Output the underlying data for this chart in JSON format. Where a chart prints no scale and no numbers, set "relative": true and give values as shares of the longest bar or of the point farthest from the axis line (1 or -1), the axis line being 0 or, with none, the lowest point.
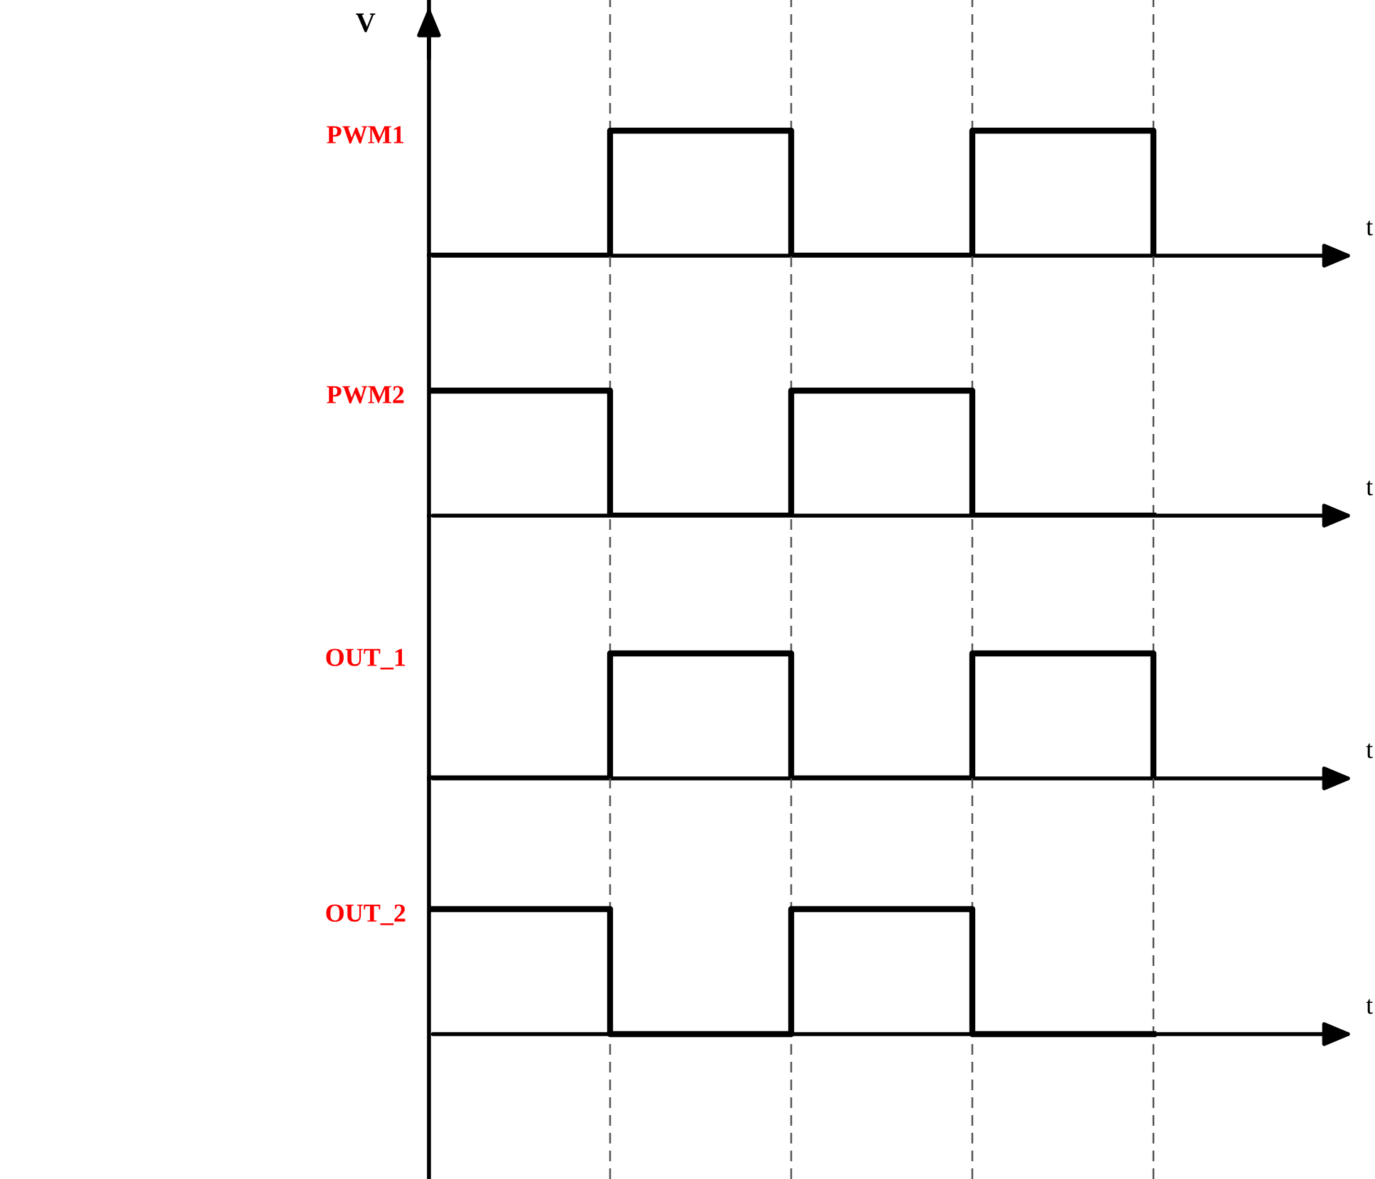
{
  "chart_data": [
    {
      "type": "step",
      "relative": true,
      "ylabel": "V",
      "xlabel": "t",
      "categories": [
        null,
        null,
        null,
        null,
        null
      ],
      "grid": "x",
      "series": [
        {
          "name": "PWM1",
          "color": "#000000",
          "values": [
            0,
            1,
            0,
            1,
            0
          ]
        }
      ]
    },
    {
      "type": "step",
      "relative": true,
      "xlabel": "t",
      "categories": [
        null,
        null,
        null,
        null,
        null
      ],
      "grid": "x",
      "series": [
        {
          "name": "PWM2",
          "color": "#000000",
          "values": [
            1,
            0,
            1,
            0,
            0
          ]
        }
      ]
    },
    {
      "type": "step",
      "relative": true,
      "xlabel": "t",
      "categories": [
        null,
        null,
        null,
        null,
        null
      ],
      "grid": "x",
      "series": [
        {
          "name": "OUT_1",
          "color": "#000000",
          "values": [
            0,
            1,
            0,
            1,
            0
          ]
        }
      ]
    },
    {
      "type": "step",
      "relative": true,
      "xlabel": "t",
      "categories": [
        null,
        null,
        null,
        null,
        null
      ],
      "grid": "x",
      "series": [
        {
          "name": "OUT_2",
          "color": "#000000",
          "values": [
            1,
            0,
            1,
            0,
            0
          ]
        }
      ]
    }
  ]
}
